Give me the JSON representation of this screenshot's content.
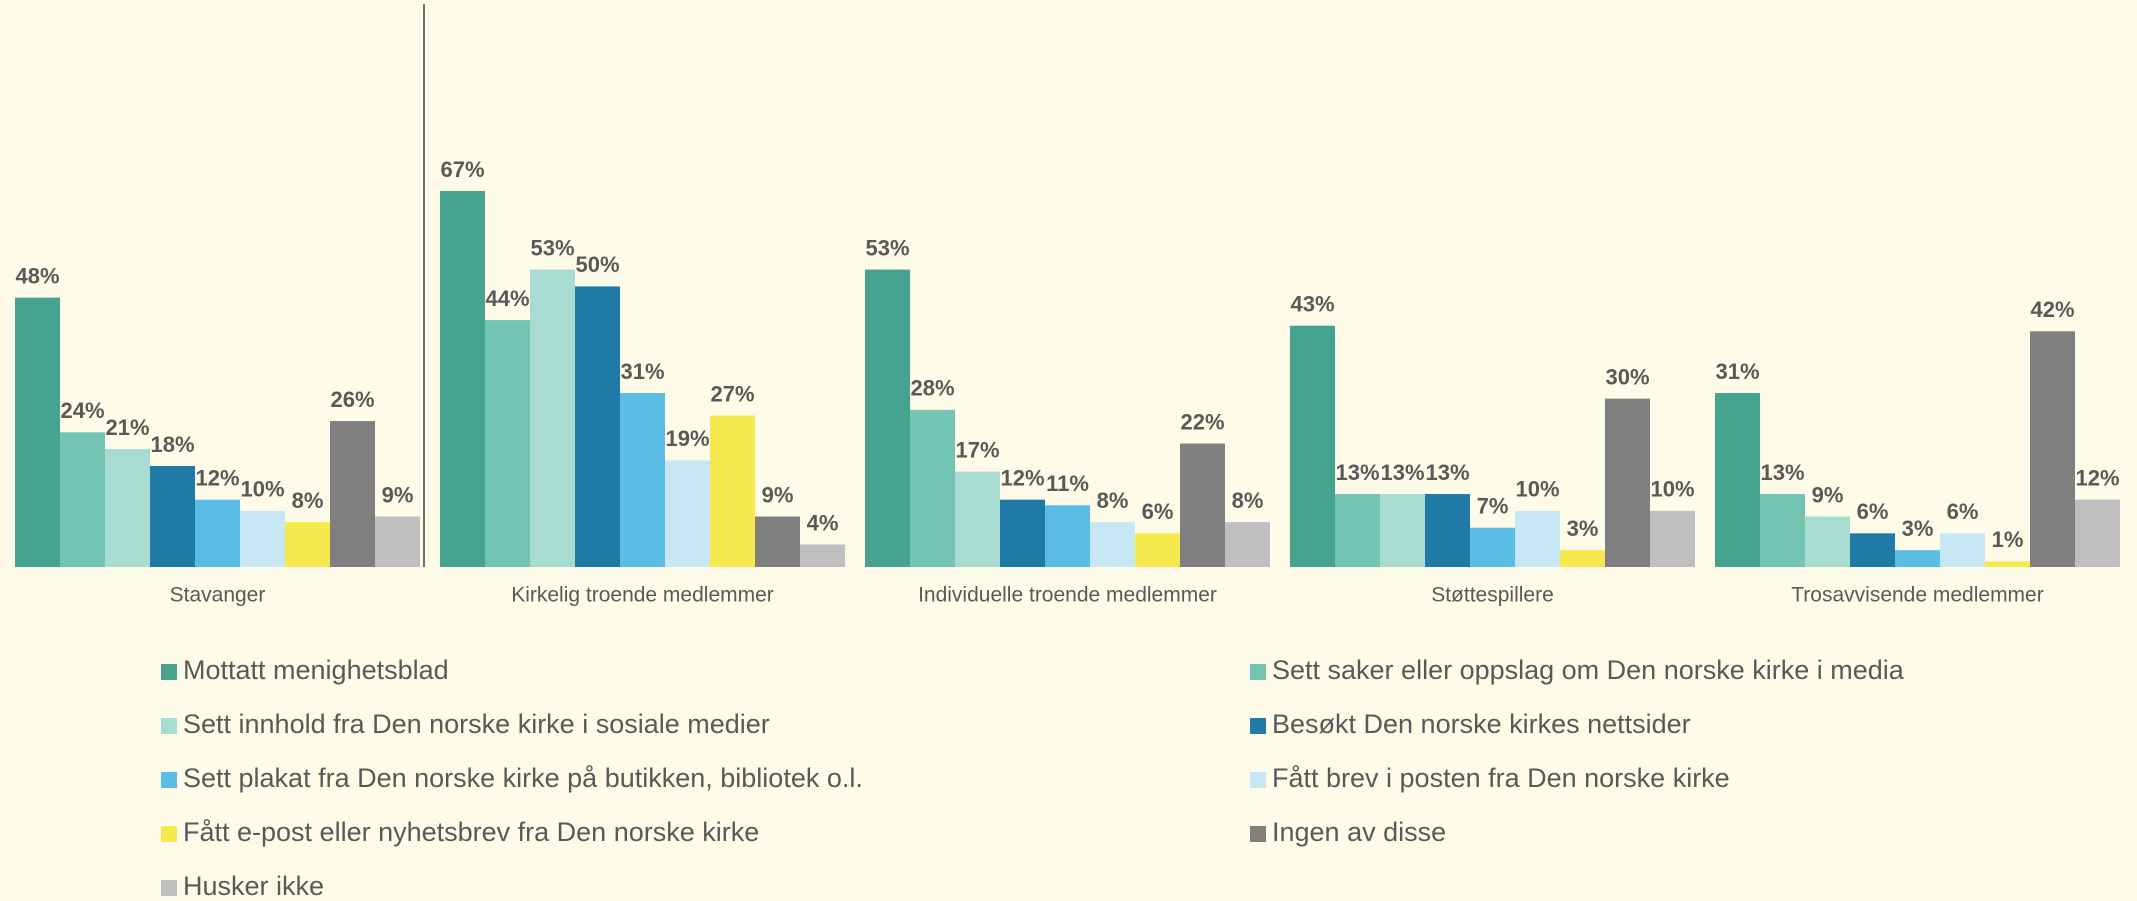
{
  "chart_data": {
    "type": "bar",
    "categories": [
      "Stavanger",
      "Kirkelig troende medlemmer",
      "Individuelle troende medlemmer",
      "Støttespillere",
      "Trosavvisende medlemmer"
    ],
    "series": [
      {
        "name": "Mottatt menighetsblad",
        "color": "#45a390",
        "values": [
          48,
          67,
          53,
          43,
          31
        ],
        "value_labels": [
          "48%",
          "67%",
          "53%",
          "43%",
          "31%"
        ]
      },
      {
        "name": "Sett saker eller oppslag om Den norske kirke i media",
        "color": "#74c4b4",
        "values": [
          24,
          44,
          28,
          13,
          13
        ],
        "value_labels": [
          "24%",
          "44%",
          "28%",
          "13%",
          "13%"
        ]
      },
      {
        "name": "Sett innhold fra Den norske kirke i sosiale medier",
        "color": "#a8dcd1",
        "values": [
          21,
          53,
          17,
          13,
          9
        ],
        "value_labels": [
          "21%",
          "53%",
          "17%",
          "13%",
          "9%"
        ]
      },
      {
        "name": "Besøkt Den norske kirkes nettsider",
        "color": "#1f7ba6",
        "values": [
          18,
          50,
          12,
          13,
          6
        ],
        "value_labels": [
          "18%",
          "50%",
          "12%",
          "13%",
          "6%"
        ]
      },
      {
        "name": "Sett plakat fra Den norske kirke på butikken, bibliotek o.l.",
        "color": "#5bbde4",
        "values": [
          12,
          31,
          11,
          7,
          3
        ],
        "value_labels": [
          "12%",
          "31%",
          "11%",
          "7%",
          "3%"
        ]
      },
      {
        "name": "Fått brev i posten fra Den norske kirke",
        "color": "#c7e7f5",
        "values": [
          10,
          19,
          8,
          10,
          6
        ],
        "value_labels": [
          "10%",
          "19%",
          "8%",
          "10%",
          "6%"
        ]
      },
      {
        "name": "Fått e-post eller nyhetsbrev fra Den norske kirke",
        "color": "#f5e94d",
        "values": [
          8,
          27,
          6,
          3,
          1
        ],
        "value_labels": [
          "8%",
          "27%",
          "6%",
          "3%",
          "1%"
        ]
      },
      {
        "name": "Ingen av disse",
        "color": "#7f7f7f",
        "values": [
          26,
          9,
          22,
          30,
          42
        ],
        "value_labels": [
          "26%",
          "9%",
          "22%",
          "30%",
          "42%"
        ]
      },
      {
        "name": "Husker ikke",
        "color": "#bfbfbf",
        "values": [
          9,
          4,
          8,
          10,
          12
        ],
        "value_labels": [
          "9%",
          "4%",
          "8%",
          "10%",
          "12%"
        ]
      }
    ]
  }
}
